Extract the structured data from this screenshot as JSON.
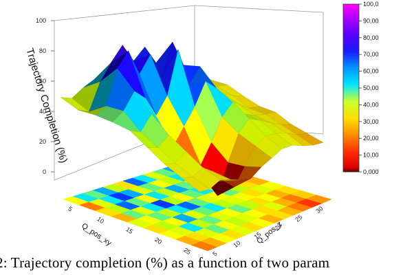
{
  "caption": "2: Trajectory completion (%) as a function of two param",
  "chart_data": {
    "type": "surface3d",
    "zlabel": "Trajectory Completion (%)",
    "xlabel": "Q_pos_xy",
    "ylabel": "Q_pos_z",
    "zlim": [
      0,
      100
    ],
    "zticks": [
      "0",
      "20",
      "40",
      "60",
      "80",
      "100"
    ],
    "xticks": [
      "5",
      "10",
      "15",
      "20",
      "25"
    ],
    "yticks": [
      "5",
      "10",
      "15",
      "20",
      "25",
      "30"
    ],
    "colorbar": {
      "ticks": [
        "0,000",
        "10,00",
        "20,00",
        "30,00",
        "40,00",
        "50,00",
        "60,00",
        "70,00",
        "80,00",
        "90,00",
        "100,0"
      ],
      "range": [
        0,
        100
      ]
    },
    "colormap": [
      "#6a0000",
      "#ff0000",
      "#ff9900",
      "#ffff00",
      "#c8ff00",
      "#00e6ff",
      "#0050ff",
      "#1a00ff",
      "#7000ff",
      "#ff00ff"
    ],
    "surface_z": [
      [
        42,
        38,
        45,
        50,
        55,
        48,
        52,
        44,
        47,
        40,
        36,
        30,
        28
      ],
      [
        40,
        35,
        60,
        75,
        88,
        70,
        80,
        62,
        55,
        45,
        38,
        32,
        30
      ],
      [
        45,
        50,
        82,
        95,
        70,
        85,
        60,
        90,
        65,
        50,
        42,
        35,
        33
      ],
      [
        48,
        55,
        70,
        60,
        40,
        55,
        95,
        58,
        72,
        48,
        40,
        34,
        30
      ],
      [
        50,
        45,
        58,
        42,
        20,
        35,
        50,
        70,
        60,
        46,
        38,
        30,
        28
      ],
      [
        44,
        40,
        48,
        30,
        10,
        8,
        25,
        45,
        55,
        40,
        35,
        32,
        30
      ],
      [
        38,
        35,
        42,
        25,
        5,
        -12,
        15,
        38,
        48,
        42,
        36,
        30,
        26
      ],
      [
        35,
        32,
        36,
        28,
        15,
        5,
        20,
        35,
        40,
        38,
        34,
        28,
        25
      ],
      [
        32,
        30,
        34,
        30,
        25,
        22,
        28,
        32,
        36,
        35,
        30,
        26,
        24
      ]
    ],
    "floor_map": [
      [
        35,
        55,
        50,
        60,
        45,
        30,
        65,
        55,
        40,
        50,
        60,
        45,
        35
      ],
      [
        20,
        40,
        55,
        70,
        60,
        40,
        50,
        35,
        45,
        55,
        40,
        30,
        25
      ],
      [
        30,
        45,
        65,
        50,
        35,
        55,
        45,
        60,
        50,
        40,
        35,
        25,
        30
      ],
      [
        25,
        50,
        40,
        55,
        70,
        45,
        35,
        50,
        55,
        45,
        30,
        35,
        20
      ],
      [
        40,
        35,
        50,
        45,
        55,
        65,
        50,
        40,
        35,
        50,
        45,
        30,
        25
      ],
      [
        30,
        45,
        35,
        60,
        40,
        50,
        55,
        45,
        40,
        35,
        30,
        40,
        35
      ],
      [
        35,
        40,
        55,
        45,
        50,
        40,
        35,
        50,
        45,
        30,
        35,
        25,
        30
      ],
      [
        25,
        30,
        40,
        50,
        35,
        45,
        40,
        35,
        30,
        40,
        25,
        20,
        28
      ],
      [
        20,
        25,
        35,
        30,
        40,
        30,
        35,
        25,
        30,
        25,
        20,
        15,
        22
      ]
    ]
  }
}
